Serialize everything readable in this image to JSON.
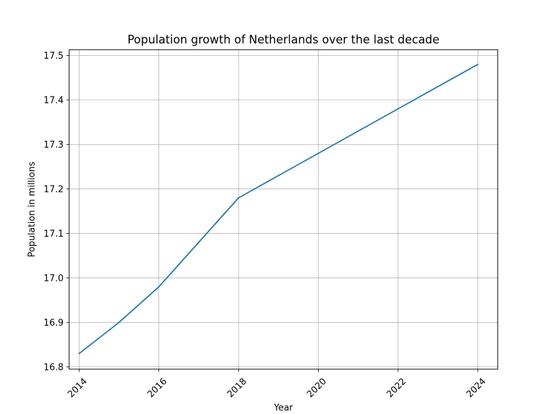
{
  "chart_data": {
    "type": "line",
    "title": "Population growth of Netherlands over the last decade",
    "xlabel": "Year",
    "ylabel": "Population in millions",
    "xlim": [
      2013.75,
      2024.5
    ],
    "ylim": [
      16.795,
      17.513
    ],
    "x_ticks": [
      2014,
      2016,
      2018,
      2020,
      2022,
      2024
    ],
    "y_ticks": [
      16.8,
      16.9,
      17.0,
      17.1,
      17.2,
      17.3,
      17.4,
      17.5
    ],
    "y_tick_labels": [
      "16.8",
      "16.9",
      "17.0",
      "17.1",
      "17.2",
      "17.3",
      "17.4",
      "17.5"
    ],
    "x_tick_rotation": 45,
    "grid": true,
    "legend": "none",
    "series": [
      {
        "color": "#1f77b4",
        "x": [
          2014,
          2015,
          2016,
          2017,
          2018,
          2019,
          2020,
          2021,
          2022,
          2023,
          2024
        ],
        "y": [
          16.83,
          16.9,
          16.98,
          17.08,
          17.18,
          17.23,
          17.28,
          17.33,
          17.38,
          17.43,
          17.48
        ]
      }
    ]
  }
}
